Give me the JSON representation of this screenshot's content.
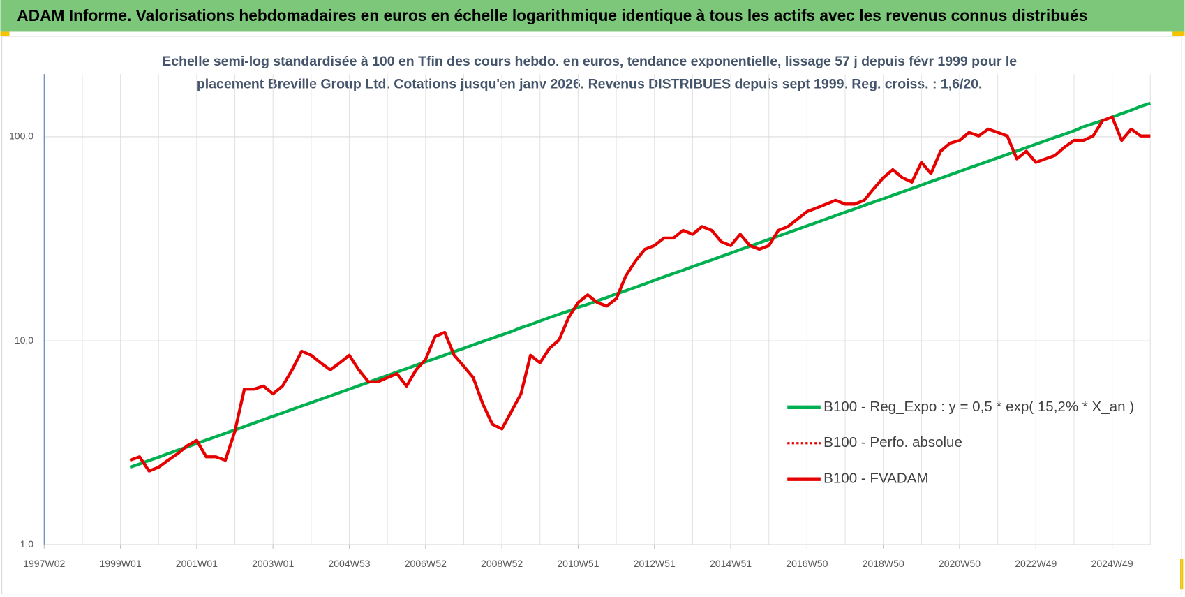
{
  "header": {
    "title": "ADAM Informe. Valorisations hebdomadaires en euros en échelle logarithmique identique à tous les actifs avec les revenus connus distribués"
  },
  "chart_data": {
    "type": "line",
    "title": [
      "Echelle semi-log standardisée à 100 en Tfin des cours hebdo. en euros, tendance exponentielle, lissage 57 j depuis févr 1999 pour le",
      "placement Breville Group Ltd. Cotations jusqu'en janv 2026. Revenus DISTRIBUES depuis sept 1999. Reg. croiss. : 1,6/20."
    ],
    "categories": [
      "1997W02",
      null,
      null,
      null,
      null,
      null,
      null,
      null,
      "1999W01",
      null,
      null,
      null,
      null,
      null,
      null,
      null,
      "2001W01",
      null,
      null,
      null,
      null,
      null,
      null,
      null,
      "2003W01",
      null,
      null,
      null,
      null,
      null,
      null,
      null,
      "2004W53",
      null,
      null,
      null,
      null,
      null,
      null,
      null,
      "2006W52",
      null,
      null,
      null,
      null,
      null,
      null,
      null,
      "2008W52",
      null,
      null,
      null,
      null,
      null,
      null,
      null,
      "2010W51",
      null,
      null,
      null,
      null,
      null,
      null,
      null,
      "2012W51",
      null,
      null,
      null,
      null,
      null,
      null,
      null,
      "2014W51",
      null,
      null,
      null,
      null,
      null,
      null,
      null,
      "2016W50",
      null,
      null,
      null,
      null,
      null,
      null,
      null,
      "2018W50",
      null,
      null,
      null,
      null,
      null,
      null,
      null,
      "2020W50",
      null,
      null,
      null,
      null,
      null,
      null,
      null,
      "2022W49",
      null,
      null,
      null,
      null,
      null,
      null,
      null,
      "2024W49",
      null,
      null,
      null,
      null
    ],
    "series": [
      {
        "name": "B100 - Reg_Expo : y = 0,5 * exp( 15,2% *  X_an )",
        "color": "#00b050",
        "style": "solid",
        "values": [
          null,
          null,
          null,
          null,
          null,
          null,
          null,
          null,
          null,
          2.4,
          2.49,
          2.59,
          2.69,
          2.8,
          2.91,
          3.02,
          3.14,
          3.26,
          3.39,
          3.52,
          3.66,
          3.8,
          3.95,
          4.11,
          4.27,
          4.43,
          4.61,
          4.79,
          4.97,
          5.17,
          5.37,
          5.58,
          5.8,
          6.03,
          6.26,
          6.51,
          6.76,
          7.03,
          7.3,
          7.59,
          7.89,
          8.19,
          8.51,
          8.85,
          9.19,
          9.55,
          9.93,
          10.3,
          10.7,
          11.1,
          11.6,
          12.0,
          12.5,
          13.0,
          13.5,
          14.0,
          14.6,
          15.1,
          15.7,
          16.3,
          17.0,
          17.6,
          18.3,
          19.0,
          19.8,
          20.6,
          21.4,
          22.2,
          23.1,
          24.0,
          24.9,
          25.9,
          26.9,
          28.0,
          29.1,
          30.2,
          31.4,
          32.6,
          33.9,
          35.2,
          36.6,
          38.0,
          39.5,
          41.1,
          42.7,
          44.3,
          46.1,
          47.9,
          49.7,
          51.7,
          53.7,
          55.8,
          58.0,
          60.3,
          62.6,
          65.1,
          67.6,
          70.3,
          73.0,
          75.9,
          78.9,
          82.0,
          85.2,
          88.5,
          92.0,
          95.6,
          99.3,
          103,
          107,
          112,
          116,
          120,
          125,
          130,
          135,
          141,
          146
        ]
      },
      {
        "name": "B100 - Perfo. absolue",
        "color": "#e60000",
        "style": "dotted",
        "values": [
          null,
          null,
          null,
          null,
          null,
          null,
          null,
          null,
          null,
          2.6,
          2.7,
          2.3,
          2.4,
          2.6,
          2.8,
          3.06,
          3.25,
          2.7,
          2.7,
          2.6,
          3.6,
          5.8,
          5.8,
          6.0,
          5.5,
          6.0,
          7.2,
          8.9,
          8.5,
          7.8,
          7.2,
          7.8,
          8.5,
          7.2,
          6.3,
          6.3,
          6.6,
          6.9,
          6.0,
          7.2,
          8.1,
          10.5,
          11.0,
          8.5,
          7.5,
          6.6,
          4.9,
          3.9,
          3.7,
          4.5,
          5.5,
          8.5,
          7.8,
          9.2,
          10.1,
          13.0,
          15.4,
          16.8,
          15.4,
          14.8,
          16.1,
          20.8,
          24.6,
          28.1,
          29.3,
          31.9,
          31.9,
          34.8,
          33.3,
          36.3,
          34.8,
          30.6,
          29.3,
          33.3,
          29.3,
          28.1,
          29.3,
          34.8,
          36.3,
          39.5,
          43.0,
          44.8,
          46.8,
          48.8,
          46.8,
          46.8,
          48.8,
          55.7,
          63,
          69,
          63,
          60,
          75,
          66,
          85,
          93,
          96,
          105,
          101,
          109,
          105,
          101,
          78,
          85,
          75,
          78,
          81,
          89,
          96,
          96,
          101,
          120,
          125,
          96,
          109,
          101,
          101
        ]
      },
      {
        "name": "B100 - FVADAM",
        "color": "#e60000",
        "style": "solid",
        "values": [
          null,
          null,
          null,
          null,
          null,
          null,
          null,
          null,
          null,
          2.6,
          2.7,
          2.3,
          2.4,
          2.6,
          2.8,
          3.06,
          3.25,
          2.7,
          2.7,
          2.6,
          3.6,
          5.8,
          5.8,
          6.0,
          5.5,
          6.0,
          7.2,
          8.9,
          8.5,
          7.8,
          7.2,
          7.8,
          8.5,
          7.2,
          6.3,
          6.3,
          6.6,
          6.9,
          6.0,
          7.2,
          8.1,
          10.5,
          11.0,
          8.5,
          7.5,
          6.6,
          4.9,
          3.9,
          3.7,
          4.5,
          5.5,
          8.5,
          7.8,
          9.2,
          10.1,
          13.0,
          15.4,
          16.8,
          15.4,
          14.8,
          16.1,
          20.8,
          24.6,
          28.1,
          29.3,
          31.9,
          31.9,
          34.8,
          33.3,
          36.3,
          34.8,
          30.6,
          29.3,
          33.3,
          29.3,
          28.1,
          29.3,
          34.8,
          36.3,
          39.5,
          43.0,
          44.8,
          46.8,
          48.8,
          46.8,
          46.8,
          48.8,
          55.7,
          63,
          69,
          63,
          60,
          75,
          66,
          85,
          93,
          96,
          105,
          101,
          109,
          105,
          101,
          78,
          85,
          75,
          78,
          81,
          89,
          96,
          96,
          101,
          120,
          125,
          96,
          109,
          101,
          101
        ]
      }
    ],
    "ylim": [
      1,
      203
    ],
    "log_y": true,
    "yticks": [
      {
        "value": 1,
        "label": "1,0"
      },
      {
        "value": 10,
        "label": "10,0"
      },
      {
        "value": 100,
        "label": "100,0"
      }
    ],
    "grid": true,
    "legend": "lower right"
  }
}
